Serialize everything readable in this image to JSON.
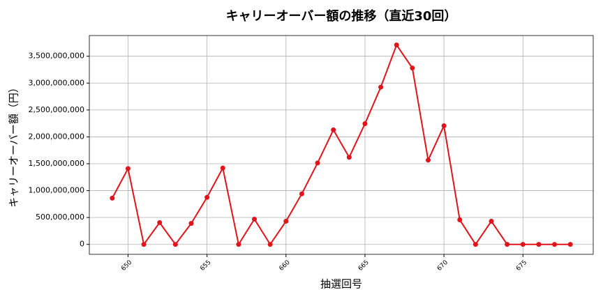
{
  "chart_data": {
    "type": "line",
    "title": "キャリーオーバー額の推移（直近30回）",
    "x_label": "抽選回号",
    "y_label": "キャリーオーバー額（円）",
    "x": [
      649,
      650,
      651,
      652,
      653,
      654,
      655,
      656,
      657,
      658,
      659,
      660,
      661,
      662,
      663,
      664,
      665,
      666,
      667,
      668,
      669,
      670,
      671,
      672,
      673,
      674,
      675,
      676,
      677,
      678
    ],
    "series": [
      {
        "color": "#e0141a",
        "values": [
          860000000,
          1410000000,
          0,
          405000000,
          0,
          390000000,
          875000000,
          1420000000,
          0,
          470000000,
          0,
          430000000,
          940000000,
          1515000000,
          2130000000,
          1620000000,
          2245000000,
          2925000000,
          3710000000,
          3280000000,
          1567000000,
          2207000000,
          457000000,
          0,
          430000000,
          0,
          0,
          0,
          0,
          0
        ]
      }
    ],
    "xlim": [
      647.55,
      679.45
    ],
    "xticks": [
      650,
      655,
      660,
      665,
      670,
      675
    ],
    "ylim": [
      -185000000,
      3885000000
    ],
    "yticks": [
      0,
      {
        "value": 500000000,
        "label": "500,000,000"
      },
      {
        "value": 1000000000,
        "label": "1,000,000,000"
      },
      {
        "value": 1500000000,
        "label": "1,500,000,000"
      },
      {
        "value": 2000000000,
        "label": "2,000,000,000"
      },
      {
        "value": 2500000000,
        "label": "2,500,000,000"
      },
      {
        "value": 3000000000,
        "label": "3,000,000,000"
      },
      {
        "value": 3500000000,
        "label": "3,500,000,000"
      }
    ],
    "grid": true
  }
}
